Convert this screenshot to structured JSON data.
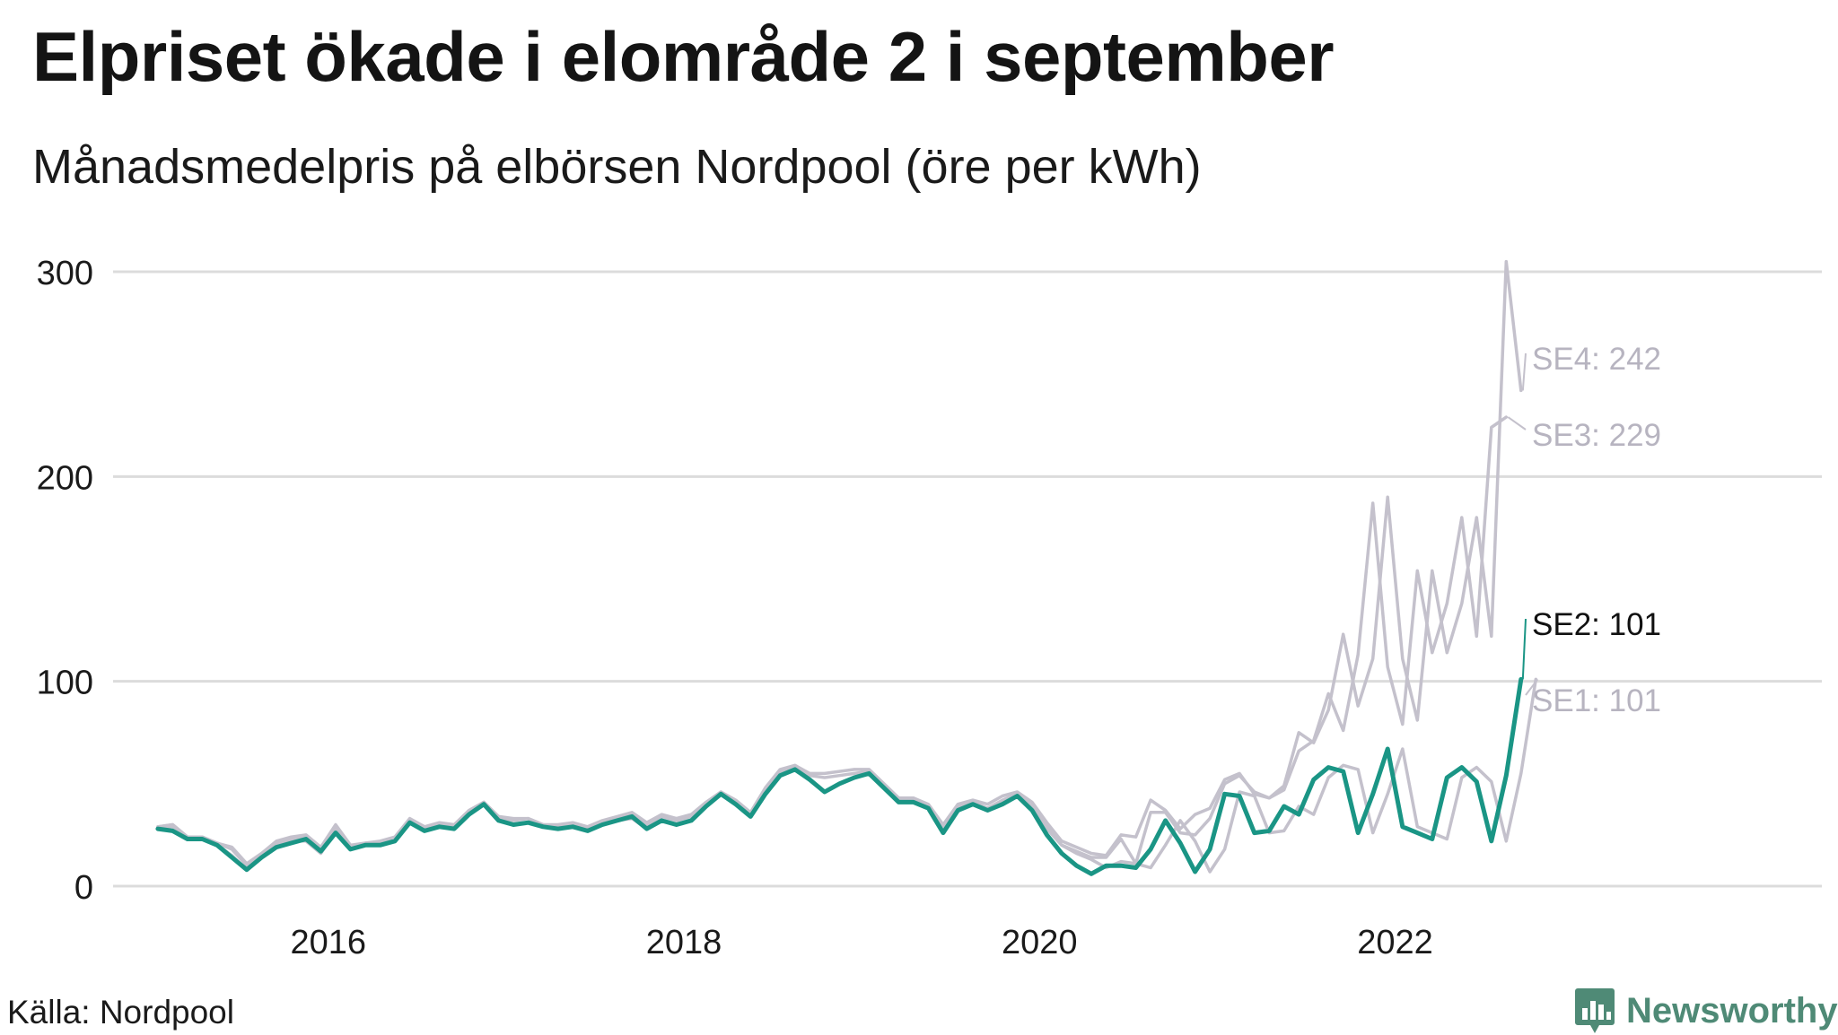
{
  "header": {
    "title": "Elpriset ökade i elområde 2 i september",
    "subtitle": "Månadsmedelpris på elbörsen Nordpool (öre per kWh)"
  },
  "footer": {
    "source": "Källa: Nordpool",
    "brand": "Newsworthy"
  },
  "colors": {
    "highlight": "#1a9585",
    "context": "#c4c1cc",
    "grid": "#dcdcdc",
    "label_highlight": "#111111",
    "label_context": "#b7b4c0"
  },
  "chart_data": {
    "type": "line",
    "title": "Elpriset ökade i elområde 2 i september",
    "subtitle": "Månadsmedelpris på elbörsen Nordpool (öre per kWh)",
    "xlabel": "",
    "ylabel": "",
    "x_start": "2015-01",
    "x_range": [
      2014.8,
      2024.4
    ],
    "ylim": [
      0,
      305
    ],
    "y_ticks": [
      0,
      100,
      200,
      300
    ],
    "x_ticks": [
      2016,
      2018,
      2020,
      2022
    ],
    "grid": "horizontal",
    "series": [
      {
        "name": "SE1",
        "label": "SE1: 101",
        "highlight": false,
        "values": [
          28,
          29,
          23,
          23,
          20,
          15,
          8,
          14,
          20,
          22,
          22,
          16,
          27,
          18,
          20,
          20,
          22,
          31,
          27,
          29,
          28,
          35,
          40,
          32,
          30,
          31,
          29,
          28,
          29,
          27,
          30,
          32,
          33,
          28,
          32,
          30,
          32,
          39,
          45,
          40,
          34,
          45,
          54,
          57,
          52,
          46,
          50,
          53,
          55,
          48,
          41,
          41,
          38,
          26,
          37,
          40,
          37,
          40,
          44,
          38,
          29,
          20,
          16,
          13,
          9,
          12,
          11,
          9,
          20,
          32,
          22,
          7,
          18,
          46,
          44,
          26,
          27,
          39,
          35,
          53,
          59,
          57,
          26,
          45,
          67,
          29,
          26,
          23,
          53,
          58,
          51,
          22,
          55,
          101
        ]
      },
      {
        "name": "SE2",
        "label": "SE2: 101",
        "highlight": true,
        "values": [
          28,
          27,
          23,
          23,
          20,
          14,
          8,
          14,
          19,
          21,
          23,
          17,
          26,
          18,
          20,
          20,
          22,
          31,
          27,
          29,
          28,
          35,
          40,
          32,
          30,
          31,
          29,
          28,
          29,
          27,
          30,
          32,
          34,
          28,
          32,
          30,
          32,
          39,
          45,
          40,
          34,
          45,
          54,
          57,
          52,
          46,
          50,
          53,
          55,
          48,
          41,
          41,
          38,
          26,
          37,
          40,
          37,
          40,
          44,
          37,
          25,
          16,
          10,
          6,
          10,
          10,
          9,
          18,
          32,
          21,
          7,
          18,
          45,
          44,
          26,
          27,
          39,
          35,
          52,
          58,
          56,
          26,
          45,
          67,
          29,
          26,
          23,
          53,
          58,
          51,
          22,
          54,
          101
        ]
      },
      {
        "name": "SE3",
        "label": "SE3: 229",
        "highlight": false,
        "values": [
          29,
          30,
          24,
          24,
          21,
          18,
          10,
          15,
          21,
          23,
          24,
          18,
          29,
          19,
          21,
          21,
          23,
          32,
          28,
          30,
          29,
          36,
          41,
          33,
          32,
          33,
          30,
          29,
          30,
          28,
          31,
          33,
          35,
          30,
          34,
          32,
          34,
          40,
          46,
          41,
          35,
          47,
          56,
          58,
          54,
          53,
          54,
          55,
          56,
          49,
          42,
          42,
          39,
          28,
          39,
          41,
          38,
          42,
          45,
          39,
          28,
          20,
          17,
          14,
          14,
          23,
          11,
          36,
          36,
          26,
          25,
          33,
          50,
          54,
          46,
          43,
          47,
          66,
          71,
          94,
          76,
          113,
          187,
          107,
          79,
          154,
          114,
          138,
          180,
          122,
          224,
          229
        ]
      },
      {
        "name": "SE4",
        "label": "SE4: 242",
        "highlight": false,
        "values": [
          29,
          30,
          24,
          24,
          21,
          19,
          11,
          16,
          22,
          24,
          25,
          19,
          30,
          20,
          21,
          22,
          24,
          33,
          29,
          31,
          30,
          37,
          41,
          34,
          33,
          33,
          30,
          30,
          31,
          29,
          32,
          34,
          36,
          31,
          35,
          33,
          35,
          41,
          46,
          42,
          36,
          48,
          57,
          59,
          55,
          55,
          56,
          57,
          57,
          50,
          43,
          43,
          40,
          30,
          40,
          42,
          40,
          44,
          46,
          41,
          31,
          22,
          19,
          16,
          15,
          25,
          24,
          42,
          37,
          28,
          35,
          38,
          52,
          55,
          45,
          43,
          49,
          75,
          70,
          86,
          123,
          88,
          111,
          190,
          111,
          81,
          154,
          114,
          138,
          180,
          122,
          305,
          242
        ]
      }
    ]
  }
}
